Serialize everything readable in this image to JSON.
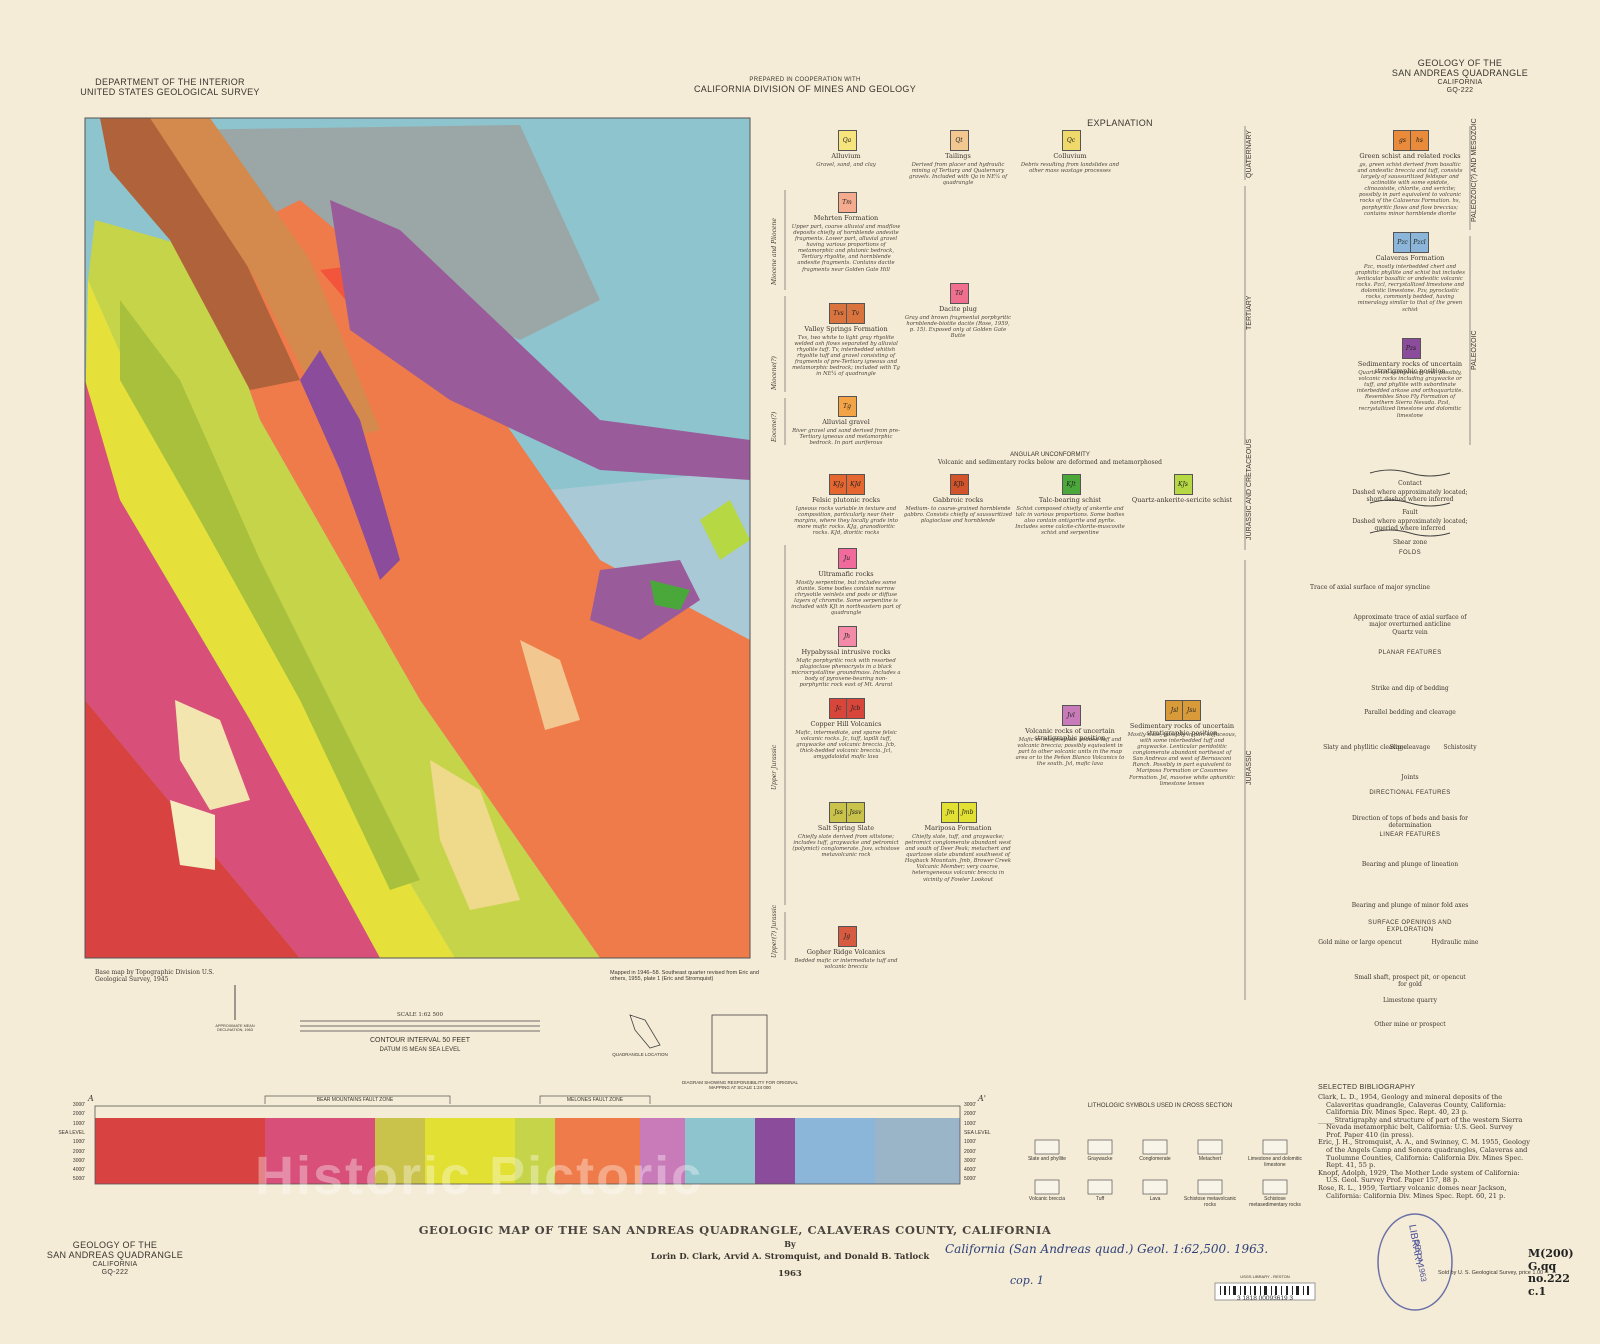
{
  "header": {
    "left": [
      "DEPARTMENT OF THE INTERIOR",
      "UNITED STATES GEOLOGICAL SURVEY"
    ],
    "center": [
      "PREPARED IN COOPERATION WITH",
      "CALIFORNIA DIVISION OF MINES AND GEOLOGY"
    ],
    "right": [
      "GEOLOGY OF THE",
      "SAN ANDREAS QUADRANGLE",
      "CALIFORNIA",
      "GQ-222"
    ]
  },
  "explanation": {
    "title": "EXPLANATION",
    "unconformity": "ANGULAR UNCONFORMITY",
    "unconformity_note": "Volcanic and sedimentary rocks below are deformed and metamorphosed",
    "ages": [
      "QUATERNARY",
      "TERTIARY",
      "JURASSIC AND CRETACEOUS",
      "JURASSIC",
      "PALEOZOIC(?) AND MESOZOIC",
      "PALEOZOIC"
    ],
    "subages": [
      "Miocene and Pliocene",
      "Miocene(?)",
      "Eocene(?)",
      "Upper Jurassic",
      "Upper(?) Jurassic"
    ],
    "units": [
      {
        "symbols": [
          "Qa"
        ],
        "color": "#f5e57c",
        "name": "Alluvium",
        "description": "Gravel, sand, and clay"
      },
      {
        "symbols": [
          "Qt"
        ],
        "color": "#f2c890",
        "name": "Tailings",
        "description": "Derived from placer and hydraulic mining of Tertiary and Quaternary gravels. Included with Qa in NE¼ of quadrangle"
      },
      {
        "symbols": [
          "Qc"
        ],
        "color": "#efd96a",
        "name": "Colluvium",
        "description": "Debris resulting from landslides and other mass wastage processes"
      },
      {
        "symbols": [
          "Tm"
        ],
        "color": "#f4ab8e",
        "name": "Mehrten Formation",
        "description": "Upper part, coarse alluvial and mudflow deposits chiefly of hornblende andesite fragments. Lower part, alluvial gravel having various proportions of metamorphic and plutonic bedrock, Tertiary rhyolite, and hornblende andesite fragments. Contains dacite fragments near Golden Gate Hill"
      },
      {
        "symbols": [
          "Td"
        ],
        "color": "#f06e8e",
        "name": "Dacite plug",
        "description": "Gray and brown fragmental porphyritic hornblende-biotite dacite (Rose, 1959, p. 15). Exposed only at Golden Gate Butte"
      },
      {
        "symbols": [
          "Tvs",
          "Tv"
        ],
        "color": "#d9743f",
        "name": "Valley Springs Formation",
        "description": "Tvs, two white to light gray rhyolite welded ash flows separated by alluvial rhyolite tuff. Tv, interbedded whitish rhyolite tuff and gravel consisting of fragments of pre-Tertiary igneous and metamorphic bedrock; included with Tg in NE¼ of quadrangle"
      },
      {
        "symbols": [
          "Tg"
        ],
        "color": "#f2a446",
        "name": "Alluvial gravel",
        "description": "River gravel and sand derived from pre-Tertiary igneous and metamorphic bedrock. In part auriferous"
      },
      {
        "symbols": [
          "KJg",
          "KJd"
        ],
        "color": "#e6662f",
        "name": "Felsic plutonic rocks",
        "description": "Igneous rocks variable in texture and composition, particularly near their margins, where they locally grade into more mafic rocks. KJg, granodioritic rocks. KJd, dioritic rocks"
      },
      {
        "symbols": [
          "KJb"
        ],
        "color": "#d3542b",
        "name": "Gabbroic rocks",
        "description": "Medium- to coarse-grained hornblende gabbro. Consists chiefly of saussuritized plagioclase and hornblende"
      },
      {
        "symbols": [
          "KJt"
        ],
        "color": "#4aa83b",
        "name": "Talc-bearing schist",
        "description": "Schist composed chiefly of ankerite and talc in various proportions. Some bodies also contain antigorite and pyrite. Includes some calcite-chlorite-muscovite schist and serpentine"
      },
      {
        "symbols": [
          "KJs"
        ],
        "color": "#b6d842",
        "name": "Quartz-ankerite-sericite schist",
        "description": ""
      },
      {
        "symbols": [
          "Ju"
        ],
        "color": "#f06b9b",
        "name": "Ultramafic rocks",
        "description": "Mostly serpentine, but includes some dunite. Some bodies contain narrow chrysotile veinlets and pods or diffuse layers of chromite. Some serpentine is included with KJt in northeastern part of quadrangle"
      },
      {
        "symbols": [
          "Jh"
        ],
        "color": "#f28aa8",
        "name": "Hypabyssal intrusive rocks",
        "description": "Mafic porphyritic rock with resorbed plagioclase phenocrysts in a black microcrystalline groundmass. Includes a body of pyroxene-bearing non-porphyritic rock east of Mt. Ararat"
      },
      {
        "symbols": [
          "Jc",
          "Jcb"
        ],
        "color": "#d8453b",
        "name": "Copper Hill Volcanics",
        "description": "Mafic, intermediate, and sparse felsic volcanic rocks. Jc, tuff, lapilli tuff, graywacke and volcanic breccia. Jcb, thick-bedded volcanic breccia. Jcl, amygdaloidal mafic lava"
      },
      {
        "symbols": [
          "Jvl"
        ],
        "color": "#c97ab9",
        "name": "Volcanic rocks of uncertain stratigraphic position",
        "description": "Mafic or intermediate bedded tuff and volcanic breccia; possibly equivalent in part to other volcanic units in the map area or to the Peñon Blanco Volcanics to the south. Jvl, mafic lava"
      },
      {
        "symbols": [
          "Jsl",
          "Jsu"
        ],
        "color": "#d99b3a",
        "name": "Sedimentary rocks of uncertain stratigraphic position",
        "description": "Mostly slate, possibly in part tuffaceous, with some interbedded tuff and graywacke. Lenticular peridotitic conglomerate abundant northeast of San Andreas and west of Bernasconi Ranch. Possibly in part equivalent to Mariposa Formation or Cosumnes Formation. Jsl, massive white aphanitic limestone lenses"
      },
      {
        "symbols": [
          "Jss",
          "Jssv"
        ],
        "color": "#c9c24b",
        "name": "Salt Spring Slate",
        "description": "Chiefly slate derived from siltstone; includes tuff, graywacke and petromict (polymict) conglomerate. Jssv, schistose metavolcanic rock"
      },
      {
        "symbols": [
          "Jm",
          "Jmb"
        ],
        "color": "#e2e032",
        "name": "Mariposa Formation",
        "description": "Chiefly slate, tuff, and graywacke; petromict conglomerate abundant west and south of Deer Peak; metachert and quartzose slate abundant southwest of Hogback Mountain. Jmb, Brower Creek Volcanic Member; very coarse, heterogeneous volcanic breccia in vicinity of Fowler Lookout"
      },
      {
        "symbols": [
          "Jg"
        ],
        "color": "#d65b40",
        "name": "Gopher Ridge Volcanics",
        "description": "Bedded mafic or intermediate tuff and volcanic breccia"
      },
      {
        "symbols": [
          "gs",
          "hs"
        ],
        "color": "#e98b3a",
        "name": "Green schist and related rocks",
        "description": "gs, green schist derived from basaltic and andesitic breccia and tuff, consists largely of saussuritized feldspar and actinolite with some epidote, clinozoisite, chlorite, and sericite; possibly in part equivalent to volcanic rocks of the Calaveras Formation. hs, porphyritic flows and flow breccias; contains minor hornblende diorite"
      },
      {
        "symbols": [
          "Pzc",
          "Pzcl"
        ],
        "color": "#8bb6d9",
        "name": "Calaveras Formation",
        "description": "Pzc, mostly interbedded chert and graphitic phyllite and schist but includes lenticular basaltic or andesitic volcanic rocks. Pzcl, recrystallized limestone and dolomitic limestone. Pzv, pyroclastic rocks, commonly bedded, having mineralogy similar to that of the green schist"
      },
      {
        "symbols": [
          "Pzs"
        ],
        "color": "#8a4c9b",
        "name": "Sedimentary rocks of uncertain stratigraphic position",
        "description": "Quartz-rich sedimentary and, possibly, volcanic rocks including graywacke or tuff, and phyllite with subordinate interbedded arkose and orthoquartzite. Resembles Shoo Fly Formation of northern Sierra Nevada. Pzsl, recrystallized limestone and dolomitic limestone"
      }
    ],
    "symbols": [
      "Contact",
      "Dashed where approximately located; short dashed where inferred",
      "Fault",
      "Dashed where approximately located; queried where inferred",
      "Shear zone",
      "FOLDS",
      "Trace of axial surface of major syncline",
      "Approximate trace of axial surface of major overturned anticline",
      "Quartz vein",
      "PLANAR FEATURES",
      "Strike and dip of bedding",
      "Parallel bedding and cleavage",
      "Slaty and phyllitic cleavage",
      "Slip cleavage",
      "Schistosity",
      "Joints",
      "DIRECTIONAL FEATURES",
      "Direction of tops of beds and basis for determination",
      "LINEAR FEATURES",
      "Bearing and plunge of lineation",
      "Bearing and plunge of minor fold axes",
      "SURFACE OPENINGS AND EXPLORATION",
      "Gold mine or large opencut",
      "Hydraulic mine",
      "Small shaft, prospect pit, or opencut for gold",
      "Limestone quarry",
      "Other mine or prospect"
    ]
  },
  "map_notes": {
    "base": "Base map by Topographic Division U.S. Geological Survey, 1945",
    "scale": "SCALE 1:62 500",
    "contour": "CONTOUR INTERVAL 50 FEET",
    "datum": "DATUM IS MEAN SEA LEVEL",
    "mapped": "Mapped in 1946–58. Southeast quarter revised from Eric and others, 1955, plate 1 (Eric and Stromquist)",
    "location": "QUADRANGLE LOCATION",
    "diagram": "DIAGRAM SHOWING RESPONSIBILITY FOR ORIGINAL MAPPING AT SCALE 1:24 000",
    "declination": "APPROXIMATE MEAN DECLINATION, 1963"
  },
  "cross_section": {
    "start": "A",
    "end": "A'",
    "zones": [
      "BEAR MOUNTAINS FAULT ZONE",
      "MELONES FAULT ZONE"
    ],
    "elevations": [
      "3000'",
      "2000'",
      "1000'",
      "SEA LEVEL",
      "1000'",
      "2000'",
      "3000'",
      "4000'",
      "5000'"
    ]
  },
  "lithologic_symbols": {
    "title": "LITHOLOGIC SYMBOLS USED IN CROSS SECTION",
    "items": [
      "Slate and phyllite",
      "Graywacke",
      "Conglomerate",
      "Metachert",
      "Limestone and dolomitic limestone",
      "Volcanic breccia",
      "Tuff",
      "Lava",
      "Schistose metavolcanic rocks",
      "Schistose metasedimentary rocks"
    ]
  },
  "bibliography": {
    "title": "SELECTED BIBLIOGRAPHY",
    "entries": [
      "Clark, L. D., 1954, Geology and mineral deposits of the Calaveritas quadrangle, Calaveras County, California: California Div. Mines Spec. Rept. 40, 23 p.",
      "_____Stratigraphy and structure of part of the western Sierra Nevada metamorphic belt, California: U.S. Geol. Survey Prof. Paper 410 (in press).",
      "Eric, J. H., Stromquist, A. A., and Swinney, C. M. 1955, Geology of the Angels Camp and Sonora quadrangles, Calaveras and Tuolumne Counties, California: California Div. Mines Spec. Rept. 41, 55 p.",
      "Knopf, Adolph, 1929, The Mother Lode system of California: U.S. Geol. Survey Prof. Paper 157, 88 p.",
      "Rose, R. L., 1959, Tertiary volcanic domes near Jackson, California: California Div. Mines Spec. Rept. 60, 21 p."
    ]
  },
  "title_block": {
    "title": "GEOLOGIC MAP OF THE SAN ANDREAS QUADRANGLE, CALAVERAS COUNTY, CALIFORNIA",
    "by": "By",
    "authors": "Lorin D. Clark, Arvid A. Stromquist, and Donald B. Tatlock",
    "year": "1963"
  },
  "footer_left": [
    "GEOLOGY OF THE",
    "SAN ANDREAS QUADRANGLE",
    "CALIFORNIA",
    "GQ-222"
  ],
  "sale": "Sold by U. S. Geological Survey, price 1.00",
  "annotations": {
    "handwritten": "California (San Andreas quad.) Geol. 1:62,500. 1963.",
    "copy": "cop. 1",
    "call_number": "M(200) G.qq no.222 c.1",
    "stamp": [
      "LIBRARY",
      "SEP 4 1963"
    ],
    "barcode_label": "USGS LIBRARY - RESTON",
    "barcode": "3 1818 00093619 3"
  },
  "watermark": "Historic Pictoric"
}
